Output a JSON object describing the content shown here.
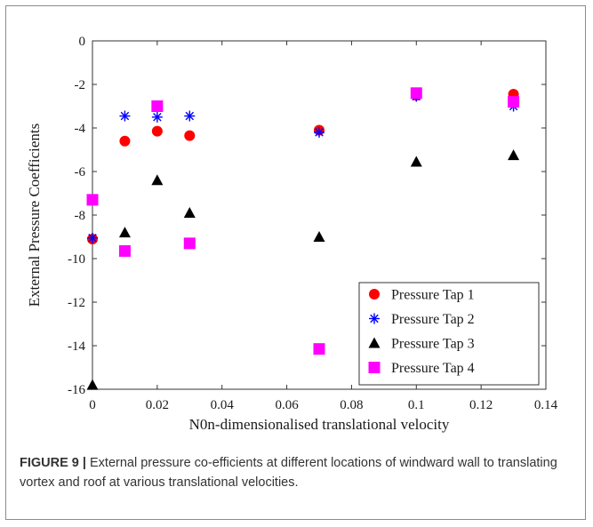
{
  "chart_data": {
    "type": "scatter",
    "xlabel": "N0n-dimensionalised translational velocity",
    "ylabel": "External Pressure Coefficients",
    "xlim": [
      0,
      0.14
    ],
    "ylim": [
      -16,
      0
    ],
    "x_ticks": [
      "0",
      "0.02",
      "0.04",
      "0.06",
      "0.08",
      "0.1",
      "0.12",
      "0.14"
    ],
    "y_ticks": [
      "0",
      "-2",
      "-4",
      "-6",
      "-8",
      "-10",
      "-12",
      "-14",
      "-16"
    ],
    "grid": false,
    "legend_position": "bottom-right",
    "series": [
      {
        "name": "Pressure Tap 1",
        "marker": "circle",
        "color": "#ff0000",
        "x": [
          0,
          0.01,
          0.02,
          0.03,
          0.07,
          0.1,
          0.13
        ],
        "y": [
          -9.1,
          -4.6,
          -4.15,
          -4.35,
          -4.1,
          -2.5,
          -2.45
        ]
      },
      {
        "name": "Pressure Tap 2",
        "marker": "asterisk",
        "color": "#0000ff",
        "x": [
          0,
          0.01,
          0.02,
          0.03,
          0.07,
          0.1,
          0.13
        ],
        "y": [
          -9.05,
          -3.45,
          -3.5,
          -3.45,
          -4.2,
          -2.55,
          -3.0
        ]
      },
      {
        "name": "Pressure Tap 3",
        "marker": "triangle",
        "color": "#000000",
        "x": [
          0,
          0.01,
          0.02,
          0.03,
          0.07,
          0.1,
          0.13
        ],
        "y": [
          -15.8,
          -8.8,
          -6.4,
          -7.9,
          -9.0,
          -5.55,
          -5.25
        ]
      },
      {
        "name": "Pressure Tap 4",
        "marker": "square",
        "color": "#ff00ff",
        "x": [
          0,
          0.01,
          0.02,
          0.03,
          0.07,
          0.1,
          0.13
        ],
        "y": [
          -7.3,
          -9.65,
          -3.0,
          -9.3,
          -14.15,
          -2.4,
          -2.8
        ]
      }
    ]
  },
  "caption": {
    "label": "FIGURE 9 |",
    "text": " External pressure co-efficients at different locations of windward wall to translating vortex and roof at various translational velocities."
  }
}
